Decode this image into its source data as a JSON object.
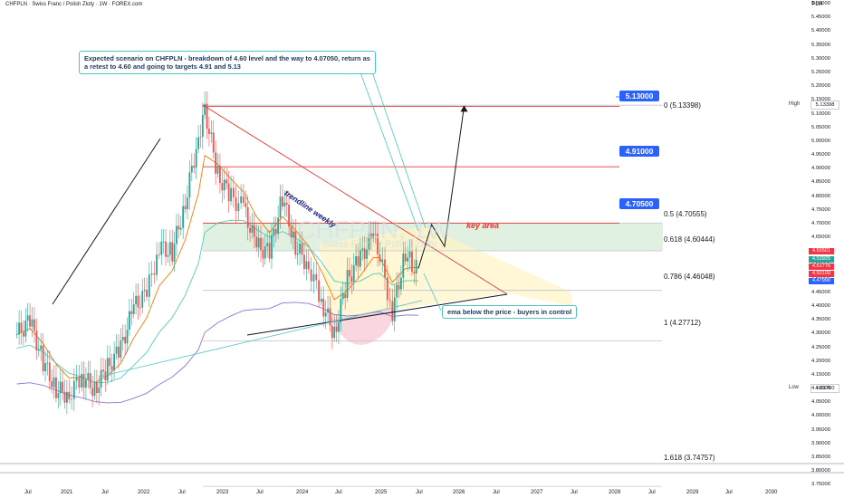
{
  "header": {
    "symbol_line": "CHFPLN · Swiss Franc / Polish Zloty · 1W · FOREX.com",
    "currency": "PLN"
  },
  "annotations": {
    "scenario": "Expected scenario on CHFPLN - breakdown of 4.60 level and the way to 4.07050, return as a retest to 4.60 and going to targets 4.91 and 5.13",
    "ema_note": "ema below the price - buyers in control",
    "trendline": "trendline weekly",
    "key_area": "key area",
    "watermark": "CHFPLN, 1W",
    "watermark_sub": "Swiss Franc / Polish Zloty"
  },
  "targets": [
    {
      "label": "5.13000",
      "value": 5.13
    },
    {
      "label": "4.91000",
      "value": 4.91
    },
    {
      "label": "4.70500",
      "value": 4.705
    }
  ],
  "fib_levels": [
    {
      "label": "0 (5.13398)",
      "value": 5.13398
    },
    {
      "label": "0.5 (4.70555)",
      "value": 4.70555
    },
    {
      "label": "0.618 (4.60444)",
      "value": 4.60444
    },
    {
      "label": "0.786 (4.46048)",
      "value": 4.46048
    },
    {
      "label": "1 (4.27712)",
      "value": 4.27712
    },
    {
      "label": "1.618 (3.74757)",
      "value": 3.74757
    }
  ],
  "high_low": {
    "high_label": "High",
    "high_value": "5.13398",
    "low_label": "Low",
    "low_value": "4.01760"
  },
  "price_badges": [
    {
      "text": "4.55501",
      "color": "#f23645"
    },
    {
      "text": "4.53925",
      "color": "#26a69a"
    },
    {
      "text": "4.51776",
      "color": "#f23645"
    },
    {
      "text": "4.50100",
      "color": "#f23645"
    },
    {
      "text": "4.47990",
      "color": "#2962ff"
    }
  ],
  "chart_data": {
    "type": "candlestick",
    "title": "CHFPLN · Swiss Franc / Polish Zloty · 1W · FOREX.com",
    "ylim": [
      3.72,
      5.58
    ],
    "y_ticks": [
      "5.50000",
      "5.45000",
      "5.40000",
      "5.35000",
      "5.30000",
      "5.25000",
      "5.20000",
      "5.15000",
      "5.10000",
      "5.05000",
      "5.00000",
      "4.95000",
      "4.90000",
      "4.85000",
      "4.80000",
      "4.75000",
      "4.70000",
      "4.65000",
      "4.60000",
      "4.55000",
      "4.50000",
      "4.45000",
      "4.40000",
      "4.35000",
      "4.30000",
      "4.25000",
      "4.20000",
      "4.15000",
      "4.10000",
      "4.05000",
      "4.00000",
      "3.95000",
      "3.90000",
      "3.85000",
      "3.80000",
      "3.75000"
    ],
    "x_ticks": [
      "Jul",
      "2021",
      "Jul",
      "2022",
      "Jul",
      "2023",
      "Jul",
      "2024",
      "Jul",
      "2025",
      "Jul",
      "2026",
      "Jul",
      "2027",
      "Jul",
      "2028",
      "Jul",
      "2029",
      "Jul",
      "2030"
    ],
    "price_path": [
      [
        "2020-05",
        4.3
      ],
      [
        "2020-07",
        4.35
      ],
      [
        "2020-09",
        4.2
      ],
      [
        "2020-11",
        4.1
      ],
      [
        "2021-01",
        4.08
      ],
      [
        "2021-03",
        4.15
      ],
      [
        "2021-05",
        4.1
      ],
      [
        "2021-07",
        4.18
      ],
      [
        "2021-09",
        4.25
      ],
      [
        "2021-11",
        4.4
      ],
      [
        "2022-01",
        4.45
      ],
      [
        "2022-03",
        4.62
      ],
      [
        "2022-05",
        4.6
      ],
      [
        "2022-07",
        4.78
      ],
      [
        "2022-09",
        5.02
      ],
      [
        "2022-10",
        5.12
      ],
      [
        "2022-12",
        4.88
      ],
      [
        "2023-02",
        4.8
      ],
      [
        "2023-04",
        4.76
      ],
      [
        "2023-06",
        4.62
      ],
      [
        "2023-08",
        4.6
      ],
      [
        "2023-10",
        4.8
      ],
      [
        "2023-12",
        4.62
      ],
      [
        "2024-02",
        4.55
      ],
      [
        "2024-04",
        4.42
      ],
      [
        "2024-06",
        4.3
      ],
      [
        "2024-08",
        4.5
      ],
      [
        "2024-10",
        4.58
      ],
      [
        "2024-12",
        4.66
      ],
      [
        "2025-01",
        4.58
      ],
      [
        "2025-03",
        4.38
      ],
      [
        "2025-05",
        4.6
      ],
      [
        "2025-06",
        4.55
      ],
      [
        "2025-07",
        4.54
      ]
    ],
    "projection": [
      [
        "2025-07",
        4.54
      ],
      [
        "2025-09",
        4.7
      ],
      [
        "2025-11",
        4.62
      ],
      [
        "2026-02",
        5.13
      ]
    ]
  }
}
